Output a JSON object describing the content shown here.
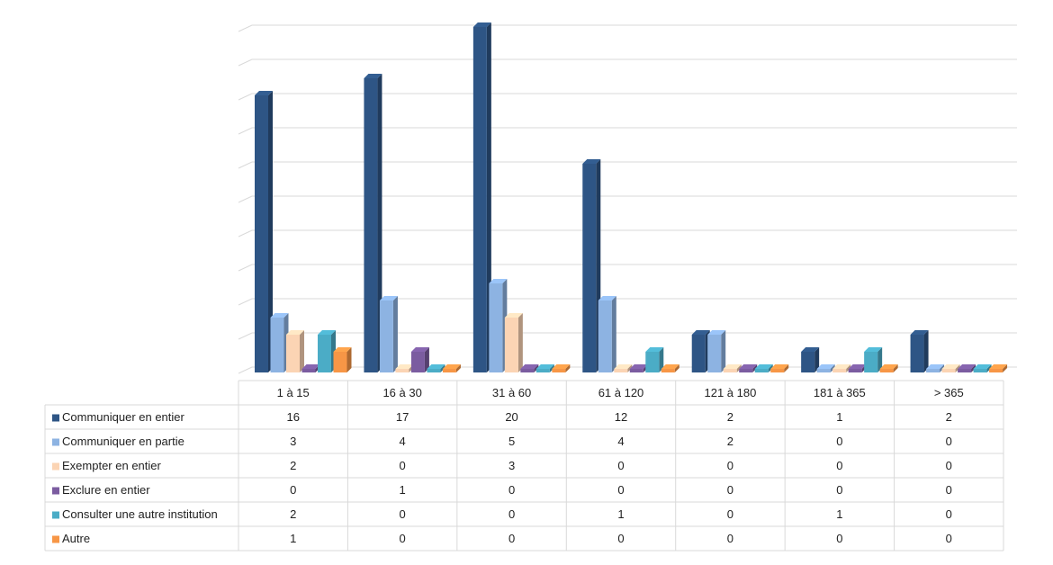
{
  "chart_data": {
    "type": "bar",
    "categories": [
      "1 à 15",
      "16 à 30",
      "31 à 60",
      "61 à 120",
      "121 à 180",
      "181 à 365",
      "> 365"
    ],
    "series": [
      {
        "name": "Communiquer en entier",
        "color": "#2e5585",
        "values": [
          16,
          17,
          20,
          12,
          2,
          1,
          2
        ]
      },
      {
        "name": "Communiquer en partie",
        "color": "#8db3e2",
        "values": [
          3,
          4,
          5,
          4,
          2,
          0,
          0
        ]
      },
      {
        "name": "Exempter en entier",
        "color": "#fbd4b4",
        "values": [
          2,
          0,
          3,
          0,
          0,
          0,
          0
        ]
      },
      {
        "name": "Exclure en entier",
        "color": "#7b5ca0",
        "values": [
          0,
          1,
          0,
          0,
          0,
          0,
          0
        ]
      },
      {
        "name": "Consulter une autre institution",
        "color": "#4bacc6",
        "values": [
          2,
          0,
          0,
          1,
          0,
          1,
          0
        ]
      },
      {
        "name": "Autre",
        "color": "#f79646",
        "values": [
          1,
          0,
          0,
          0,
          0,
          0,
          0
        ]
      }
    ],
    "ylim": [
      0,
      20
    ],
    "yticks": [
      0,
      2,
      4,
      6,
      8,
      10,
      12,
      14,
      16,
      18,
      20
    ],
    "grid": true
  }
}
